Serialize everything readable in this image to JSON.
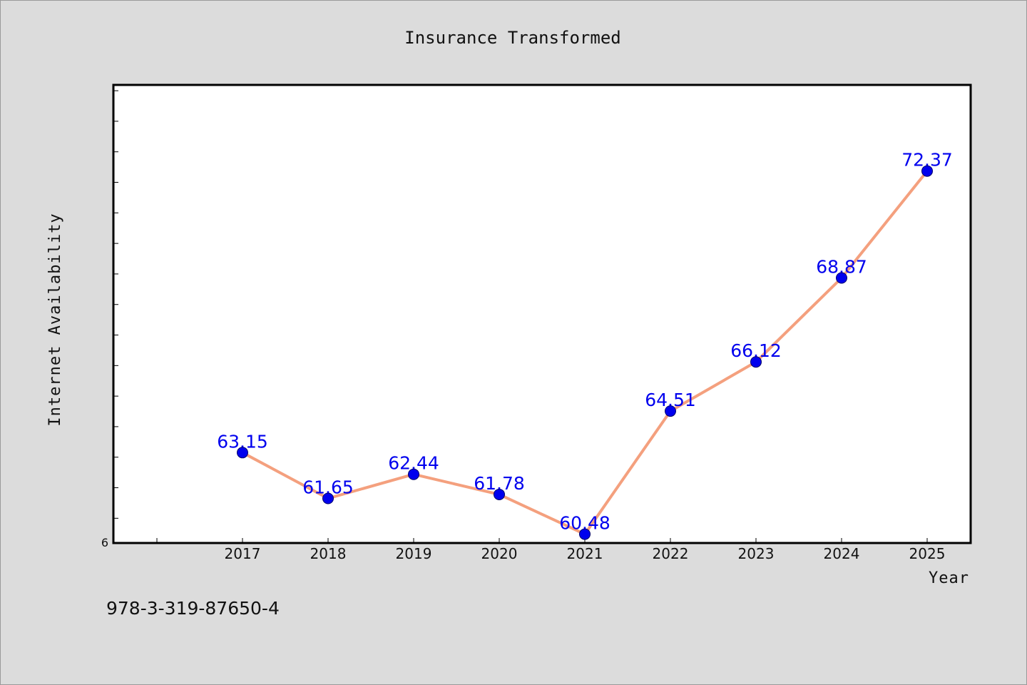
{
  "chart_data": {
    "type": "line",
    "title": "Insurance Transformed",
    "xlabel": "Year",
    "ylabel": "Internet Availability",
    "categories": [
      "2017",
      "2018",
      "2019",
      "2020",
      "2021",
      "2022",
      "2023",
      "2024",
      "2025"
    ],
    "series": [
      {
        "values": [
          63.15,
          61.65,
          62.44,
          61.78,
          60.48,
          64.51,
          66.12,
          68.87,
          72.37
        ]
      }
    ],
    "data_labels": [
      "63.15",
      "61.65",
      "62.44",
      "61.78",
      "60.48",
      "64.51",
      "66.12",
      "68.87",
      "72.37"
    ],
    "y_tick_label": "6",
    "ylim": [
      60.19,
      75.19
    ],
    "y_minor_step": 1,
    "x_extra_ticks_left": 1,
    "grid": false,
    "colors": {
      "line": "#f4a07e",
      "marker": "#0000ee",
      "data_label": "#0000ee",
      "background": "#dcdcdc",
      "plot_background": "#ffffff"
    }
  },
  "footer": {
    "text": "978-3-319-87650-4"
  }
}
